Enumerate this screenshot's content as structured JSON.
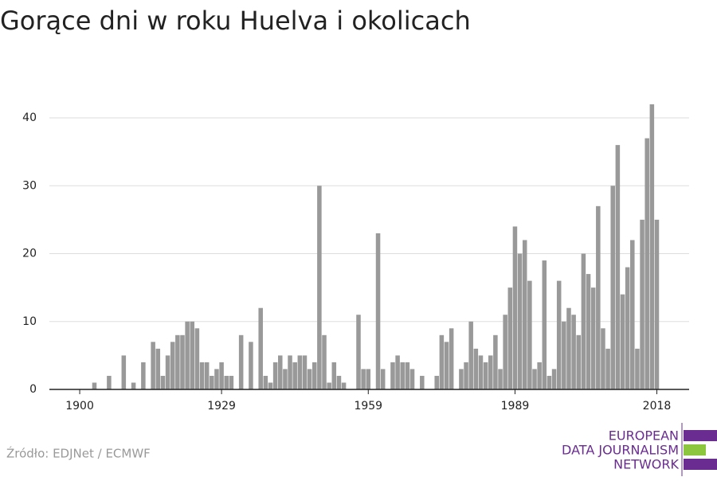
{
  "chart_data": {
    "type": "bar",
    "title": "Gorące dni w roku Huelva i okolicach",
    "x": [
      1900,
      1901,
      1902,
      1903,
      1904,
      1905,
      1906,
      1907,
      1908,
      1909,
      1910,
      1911,
      1912,
      1913,
      1914,
      1915,
      1916,
      1917,
      1918,
      1919,
      1920,
      1921,
      1922,
      1923,
      1924,
      1925,
      1926,
      1927,
      1928,
      1929,
      1930,
      1931,
      1932,
      1933,
      1934,
      1935,
      1936,
      1937,
      1938,
      1939,
      1940,
      1941,
      1942,
      1943,
      1944,
      1945,
      1946,
      1947,
      1948,
      1949,
      1950,
      1951,
      1952,
      1953,
      1954,
      1955,
      1956,
      1957,
      1958,
      1959,
      1960,
      1961,
      1962,
      1963,
      1964,
      1965,
      1966,
      1967,
      1968,
      1969,
      1970,
      1971,
      1972,
      1973,
      1974,
      1975,
      1976,
      1977,
      1978,
      1979,
      1980,
      1981,
      1982,
      1983,
      1984,
      1985,
      1986,
      1987,
      1988,
      1989,
      1990,
      1991,
      1992,
      1993,
      1994,
      1995,
      1996,
      1997,
      1998,
      1999,
      2000,
      2001,
      2002,
      2003,
      2004,
      2005,
      2006,
      2007,
      2008,
      2009,
      2010,
      2011,
      2012,
      2013,
      2014,
      2015,
      2016,
      2017,
      2018
    ],
    "values": [
      0,
      0,
      0,
      1,
      0,
      0,
      2,
      0,
      0,
      5,
      0,
      1,
      0,
      4,
      0,
      7,
      6,
      2,
      5,
      7,
      8,
      8,
      10,
      10,
      9,
      4,
      4,
      2,
      3,
      4,
      2,
      2,
      0,
      8,
      0,
      7,
      0,
      12,
      2,
      1,
      4,
      5,
      3,
      5,
      4,
      5,
      5,
      3,
      4,
      30,
      8,
      1,
      4,
      2,
      1,
      0,
      0,
      11,
      3,
      3,
      0,
      23,
      3,
      0,
      4,
      5,
      4,
      4,
      3,
      0,
      2,
      0,
      0,
      2,
      8,
      7,
      9,
      0,
      3,
      4,
      10,
      6,
      5,
      4,
      5,
      8,
      3,
      11,
      15,
      24,
      20,
      22,
      16,
      3,
      4,
      19,
      2,
      3,
      16,
      10,
      12,
      11,
      8,
      20,
      17,
      15,
      27,
      9,
      6,
      30,
      36,
      14,
      18,
      22,
      6,
      25,
      37,
      42,
      25
    ],
    "color": "#999999",
    "xlim": [
      1893.8,
      2024.6
    ],
    "xticks": [
      1900,
      1929,
      1959,
      1989,
      2018
    ],
    "ylim": [
      0,
      45
    ],
    "yticks": [
      0,
      10,
      20,
      30,
      40
    ],
    "grid": true,
    "source": "Źródło: EDJNet / ECMWF",
    "logo": [
      "EUROPEAN",
      "DATA JOURNALISM",
      "NETWORK"
    ]
  }
}
